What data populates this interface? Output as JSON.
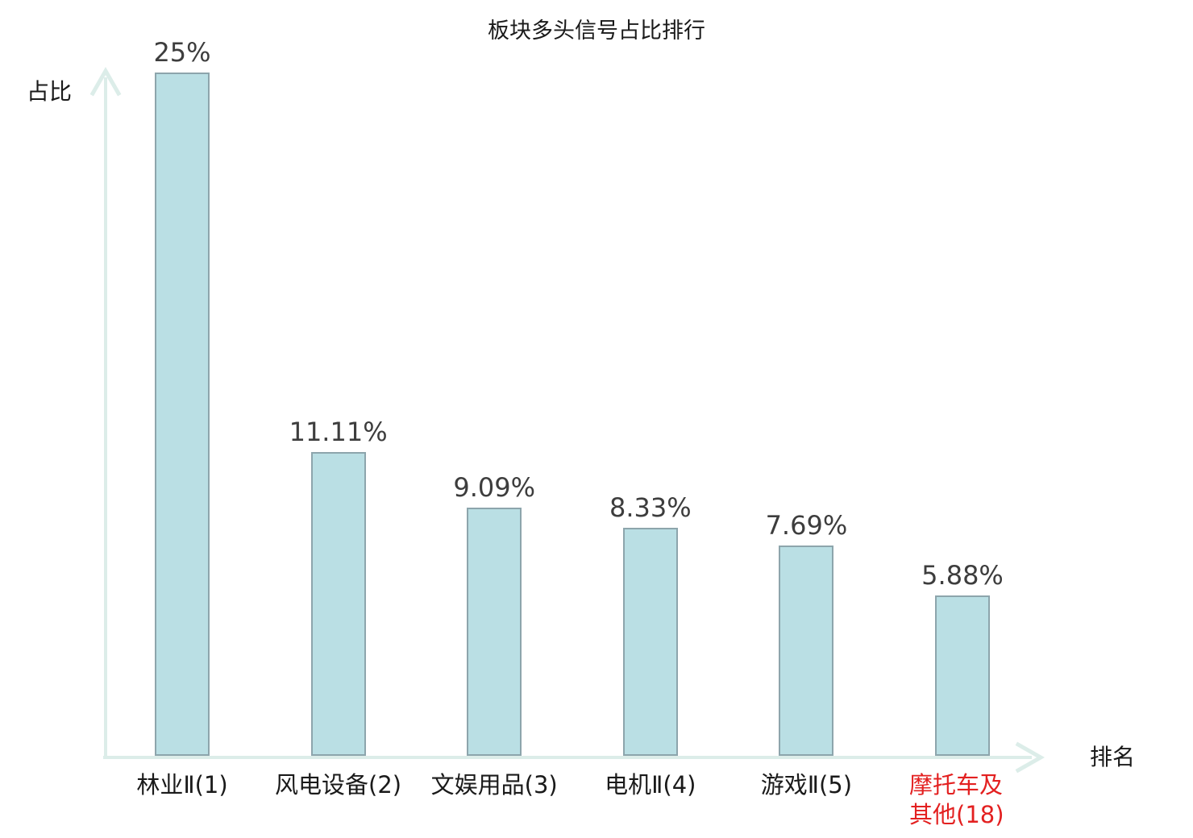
{
  "page": {
    "background": "#ffffff"
  },
  "chart_data": {
    "type": "bar",
    "title": "板块多头信号占比排行",
    "xlabel": "排名",
    "ylabel": "占比",
    "categories": [
      "林业Ⅱ(1)",
      "风电设备(2)",
      "文娱用品(3)",
      "电机Ⅱ(4)",
      "游戏Ⅱ(5)",
      "摩托车及\n其他(18)"
    ],
    "values": [
      25,
      11.11,
      9.09,
      8.33,
      7.69,
      5.88
    ],
    "value_labels": [
      "25%",
      "11.11%",
      "9.09%",
      "8.33%",
      "7.69%",
      "5.88%"
    ],
    "highlight_index": 5,
    "ylim": [
      0,
      25
    ],
    "grid": false,
    "legend": "none",
    "colors": {
      "bar_fill": "#badfe4",
      "bar_border": "#8da5ac",
      "axis": "#dcede9",
      "value_label": "#3d3d3d",
      "category_label": "#1a1a1a",
      "highlight": "#e32020"
    }
  }
}
